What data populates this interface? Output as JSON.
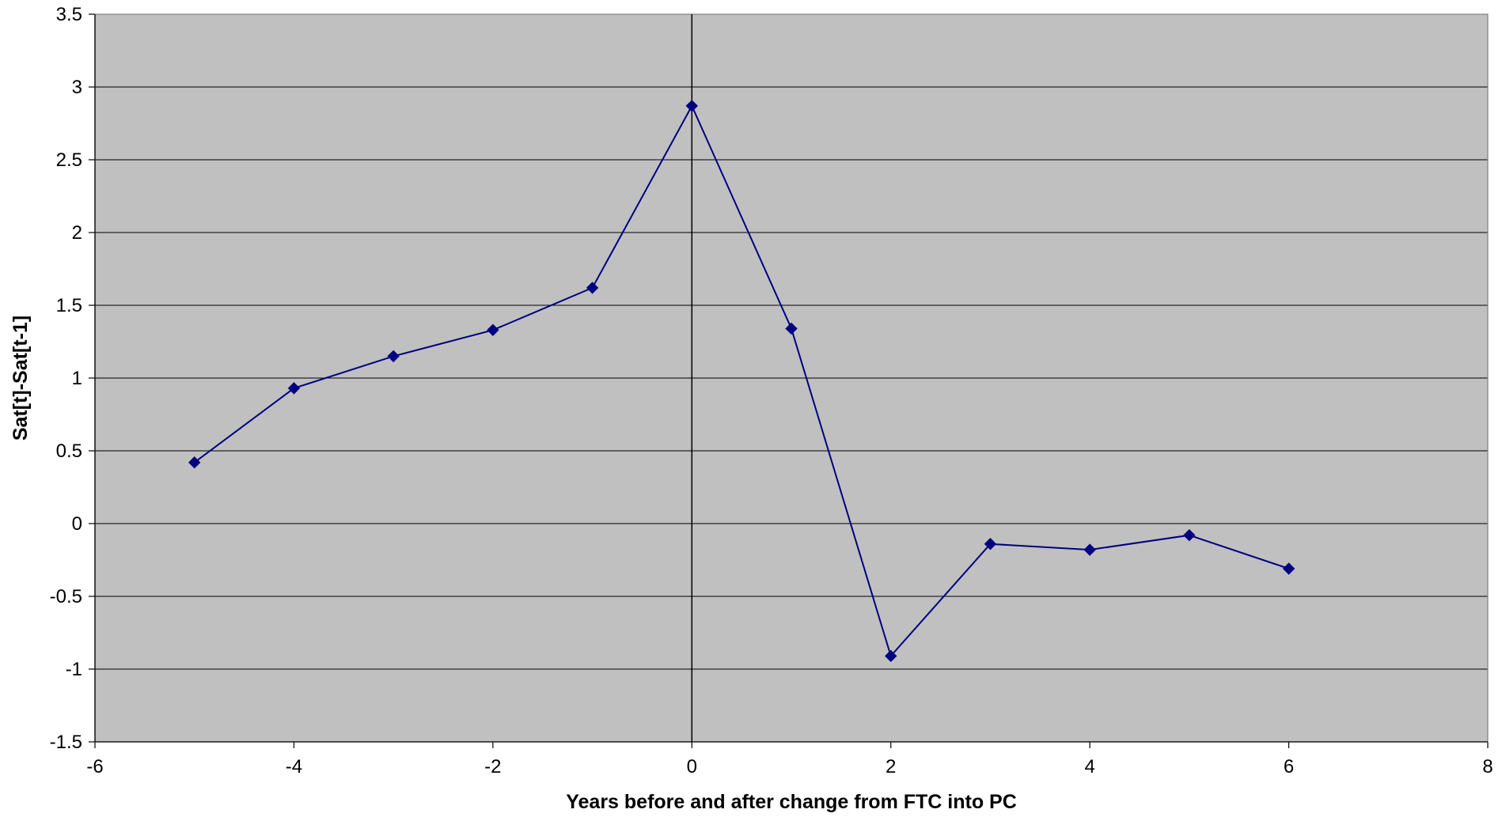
{
  "chart_data": {
    "type": "line",
    "title": "",
    "xlabel": "Years before and after change from FTC into PC",
    "ylabel": "Sat[t]-Sat[t-1]",
    "xlim": [
      -6,
      8
    ],
    "ylim": [
      -1.5,
      3.5
    ],
    "x_ticks": [
      "-6",
      "-4",
      "-2",
      "0",
      "2",
      "4",
      "6",
      "8"
    ],
    "y_ticks": [
      "3.5",
      "3",
      "2.5",
      "2",
      "1.5",
      "1",
      "0.5",
      "0",
      "-0.5",
      "-1",
      "-1.5"
    ],
    "grid": true,
    "legend": "none",
    "plot_background": "#c0c0c0",
    "gridline_color": "#000000",
    "series": [
      {
        "color": "#000080",
        "marker": "diamond",
        "x": [
          -5,
          -4,
          -3,
          -2,
          -1,
          0,
          1,
          2,
          3,
          4,
          5,
          6
        ],
        "y": [
          0.42,
          0.93,
          1.15,
          1.33,
          1.62,
          2.87,
          1.34,
          -0.91,
          -0.14,
          -0.18,
          -0.08,
          -0.31
        ]
      }
    ],
    "reference_line": {
      "x": 0,
      "color": "#000000"
    }
  }
}
